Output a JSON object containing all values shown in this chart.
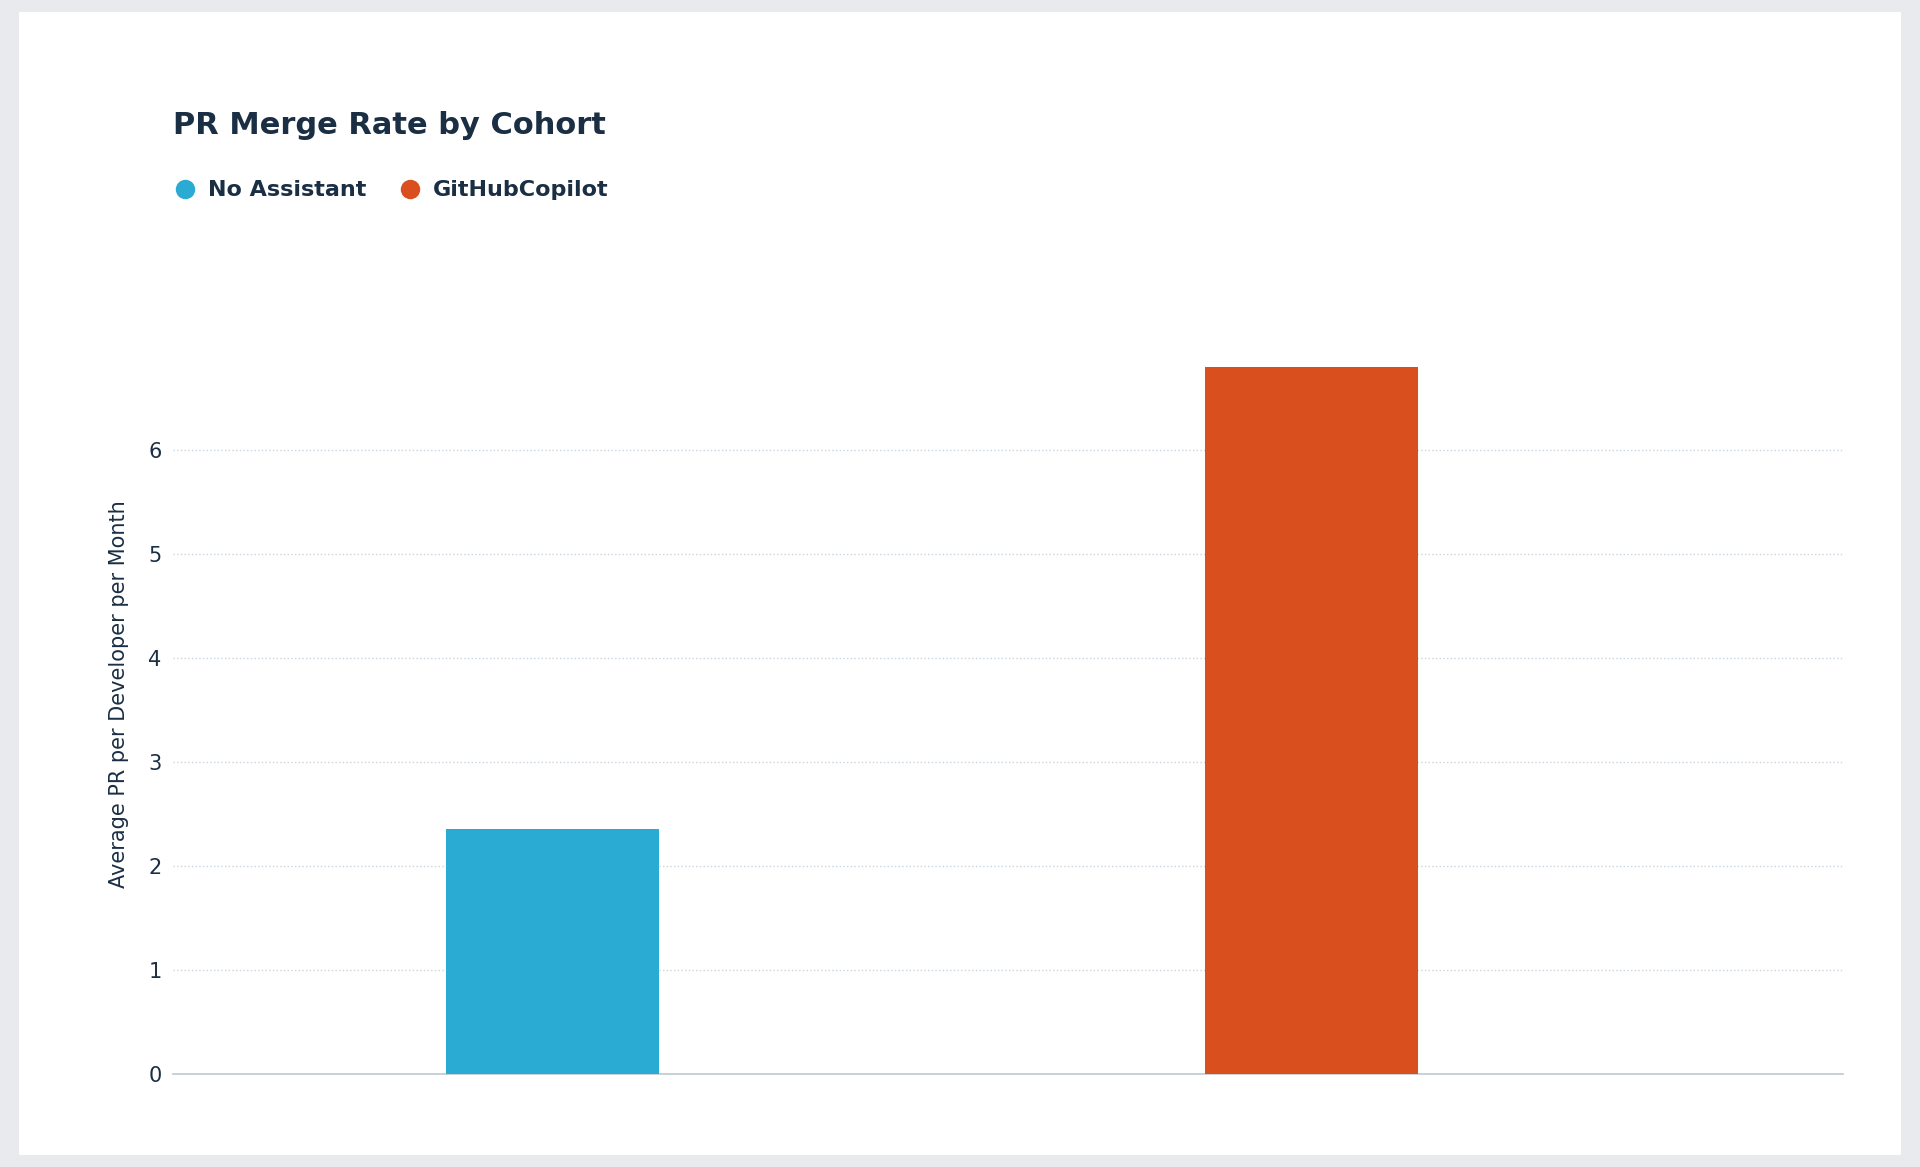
{
  "title": "PR Merge Rate by Cohort",
  "categories": [
    "No Assistant",
    "GitHubCopilot"
  ],
  "values": [
    2.35,
    6.8
  ],
  "bar_colors": [
    "#29ABD4",
    "#D94F1E"
  ],
  "legend_labels": [
    "No Assistant",
    "GitHubCopilot"
  ],
  "legend_colors": [
    "#29ABD4",
    "#D94F1E"
  ],
  "ylabel": "Average PR per Developer per Month",
  "ylim": [
    0,
    7.3
  ],
  "yticks": [
    0,
    1,
    2,
    3,
    4,
    5,
    6
  ],
  "title_fontsize": 22,
  "title_color": "#1a2e44",
  "label_fontsize": 15,
  "tick_fontsize": 15,
  "legend_fontsize": 16,
  "background_color": "#ffffff",
  "card_background": "#f7f8fa",
  "grid_color": "#c8d4de",
  "axis_color": "#c0c8d0",
  "text_color": "#1a2e44",
  "bar_width": 0.28
}
